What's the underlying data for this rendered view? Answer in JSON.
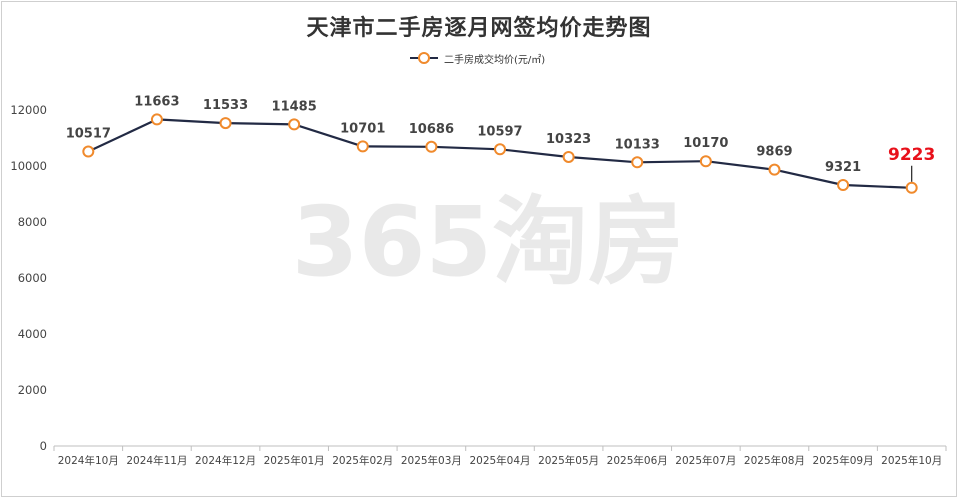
{
  "chart_data": {
    "type": "line",
    "title": "天津市二手房逐月网签均价走势图",
    "categories": [
      "2024年10月",
      "2024年11月",
      "2024年12月",
      "2025年01月",
      "2025年02月",
      "2025年03月",
      "2025年04月",
      "2025年05月",
      "2025年06月",
      "2025年07月",
      "2025年08月",
      "2025年09月",
      "2025年10月"
    ],
    "series": [
      {
        "name": "二手房成交均价(元/㎡)",
        "values": [
          10517,
          11663,
          11533,
          11485,
          10701,
          10686,
          10597,
          10323,
          10133,
          10170,
          9869,
          9321,
          9223
        ]
      }
    ],
    "ylim": [
      0,
      12000
    ],
    "yticks": [
      "0",
      "2000",
      "4000",
      "6000",
      "8000",
      "10000",
      "12000"
    ],
    "ytick_values": [
      0,
      2000,
      4000,
      6000,
      8000,
      10000,
      12000
    ],
    "xlabel": "",
    "ylabel": "",
    "legend_position": "top-center",
    "grid": false,
    "highlight_last_label": "9223",
    "colors": {
      "line": "#222a44",
      "marker": "#f08a2c",
      "highlight": "#e8101a",
      "label": "#444444",
      "axis": "#bfbfbf"
    }
  },
  "watermark": "365淘房"
}
